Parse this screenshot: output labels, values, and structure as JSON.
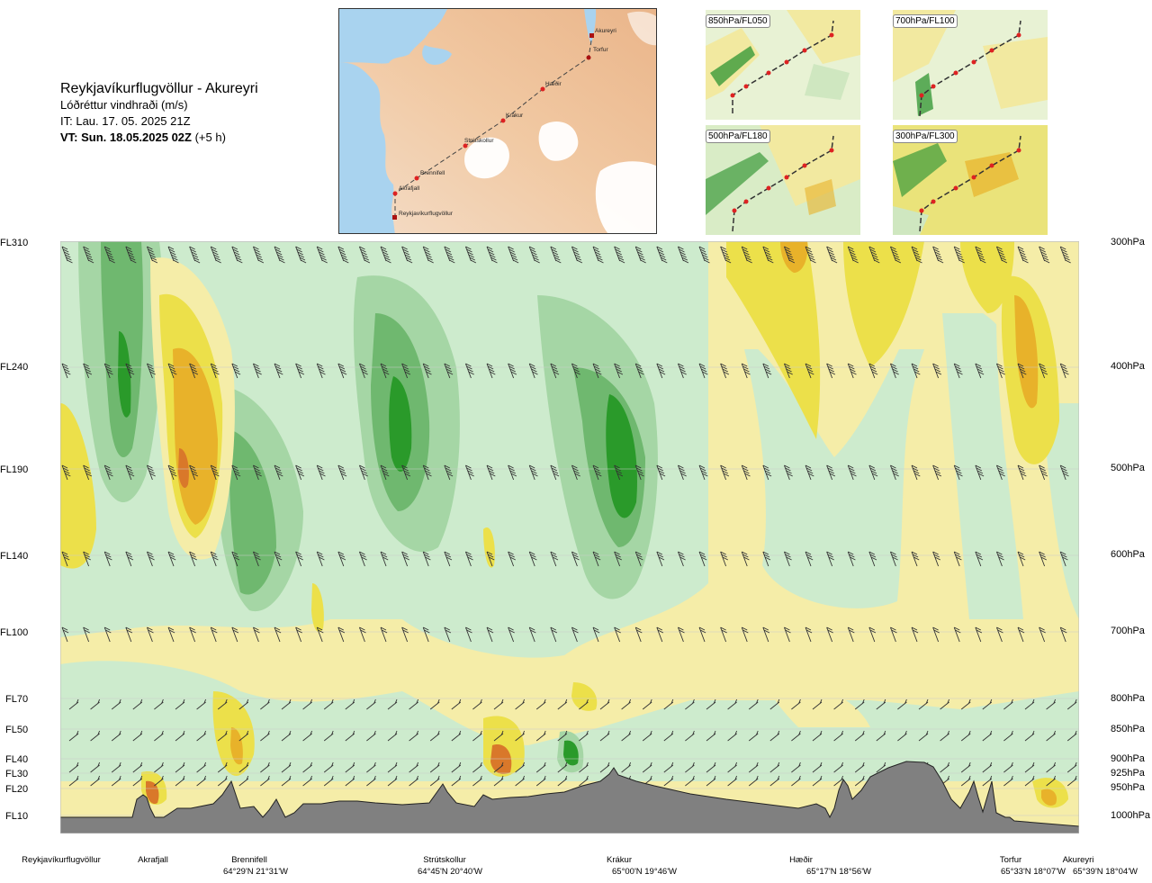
{
  "title": {
    "route": "Reykjavíkurflugvöllur - Akureyri",
    "subtitle": "Lóðréttur vindhraði (m/s)",
    "issue_time": "IT: Lau. 17. 05. 2025 21Z",
    "valid_prefix": "VT: Sun. 18.05.2025 02Z",
    "valid_suffix": " (+5 h)"
  },
  "route_map": {
    "waypoints": [
      "Reykjavíkurflugvöllur",
      "Akrafjall",
      "Brennifell",
      "Strútskollur",
      "Krákur",
      "Hæðir",
      "Torfur",
      "Akureyri"
    ]
  },
  "mini_maps": [
    {
      "label": "850hPa/FL050"
    },
    {
      "label": "700hPa/FL100"
    },
    {
      "label": "500hPa/FL180"
    },
    {
      "label": "300hPa/FL300"
    }
  ],
  "levels_left": [
    "FL310",
    "FL240",
    "FL190",
    "FL140",
    "FL100",
    "FL70",
    "FL50",
    "FL40",
    "FL30",
    "FL20",
    "FL10"
  ],
  "levels_right": [
    "300hPa",
    "400hPa",
    "500hPa",
    "600hPa",
    "700hPa",
    "800hPa",
    "850hPa",
    "900hPa",
    "925hPa",
    "950hPa",
    "1000hPa"
  ],
  "locations": [
    {
      "name": "Reykjavíkurflugvöllur",
      "coord": ""
    },
    {
      "name": "Akrafjall",
      "coord": ""
    },
    {
      "name": "Brennifell",
      "coord": "64°29'N 21°31'W"
    },
    {
      "name": "Strútskollur",
      "coord": "64°45'N 20°40'W"
    },
    {
      "name": "Krákur",
      "coord": "65°00'N 19°46'W"
    },
    {
      "name": "Hæðir",
      "coord": "65°17'N 18°56'W"
    },
    {
      "name": "Torfur",
      "coord": "65°33'N 18°07'W"
    },
    {
      "name": "Akureyri",
      "coord": "65°39'N 18°04'W"
    }
  ],
  "colors": {
    "strong_sink": "#2a9a2a",
    "mid_sink": "#6fb86f",
    "light_sink": "#a5d6a5",
    "weak_sink": "#cdebcd",
    "neutral": "#f7fbe9",
    "weak_rise": "#f5eda8",
    "light_rise": "#ece04a",
    "mid_rise": "#e8b22a",
    "strong_rise": "#d9782a",
    "terrain": "#808080",
    "route_marker": "#dd2222"
  },
  "chart_data": {
    "type": "heatmap",
    "title": "Reykjavíkurflugvöllur - Akureyri",
    "variable": "Lóðréttur vindhraði (m/s)",
    "y_levels_hPa": [
      300,
      400,
      500,
      600,
      700,
      800,
      850,
      900,
      925,
      950,
      1000
    ],
    "y_levels_FL": [
      "FL310",
      "FL240",
      "FL190",
      "FL140",
      "FL100",
      "FL70",
      "FL50",
      "FL40",
      "FL30",
      "FL20",
      "FL10"
    ],
    "x_locations": [
      "Reykjavíkurflugvöllur",
      "Akrafjall",
      "Brennifell",
      "Strútskollur",
      "Krákur",
      "Hæðir",
      "Torfur",
      "Akureyri"
    ],
    "colorbar": "none shown",
    "grid": true
  }
}
